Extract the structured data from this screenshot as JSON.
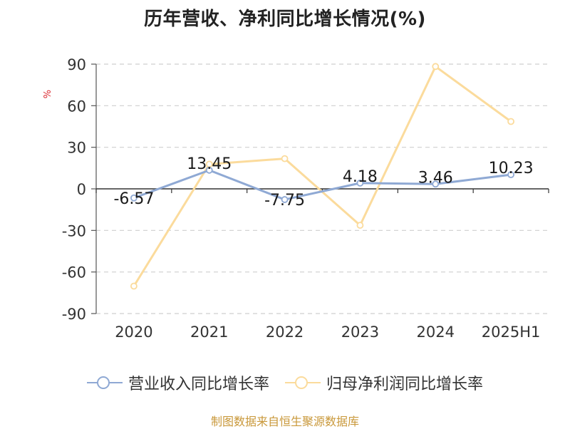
{
  "title": "历年营收、净利同比增长情况(%)",
  "source": "制图数据来自恒生聚源数据库",
  "chart_data": {
    "type": "line",
    "title": "历年营收、净利同比增长情况(%)",
    "ylabel": "%",
    "xlabel": "",
    "categories": [
      "2020",
      "2021",
      "2022",
      "2023",
      "2024",
      "2025H1"
    ],
    "ylim": [
      -90,
      90
    ],
    "yticks": [
      90,
      60,
      30,
      0,
      -30,
      -60,
      -90
    ],
    "grid": true,
    "legend_position": "bottom",
    "series": [
      {
        "name": "营业收入同比增长率",
        "color": "#8fa9d4",
        "values": [
          -6.57,
          13.45,
          -7.75,
          4.18,
          3.46,
          10.23
        ],
        "labels": [
          "-6.57",
          "13.45",
          "-7.75",
          "4.18",
          "3.46",
          "10.23"
        ]
      },
      {
        "name": "归母净利润同比增长率",
        "color": "#fbdb9c",
        "values": [
          -70.2,
          17.8,
          21.8,
          -26.3,
          88.3,
          48.6
        ]
      }
    ]
  }
}
